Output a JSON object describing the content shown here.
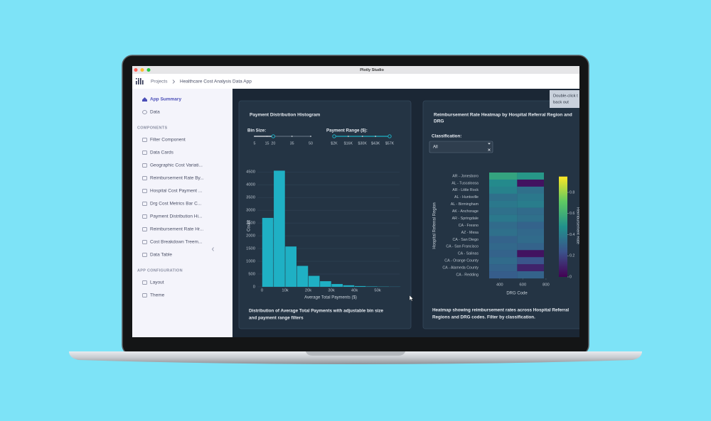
{
  "window_title": "Plotly Studio",
  "breadcrumb": {
    "root": "Projects",
    "current": "Healthcare Cost Analysis Data App"
  },
  "sidebar": {
    "top": [
      "App Summary",
      "Data"
    ],
    "components_heading": "COMPONENTS",
    "components": [
      "Filter Component",
      "Data Cards",
      "Geographic Cost Variati...",
      "Reimbursement Rate By...",
      "Hospital Cost Payment ...",
      "Drg Cost Metrics Bar C...",
      "Payment Distribution Hi...",
      "Reimbursement Rate Hr...",
      "Cost Breakdown Treem...",
      "Data Table"
    ],
    "config_heading": "APP CONFIGURATION",
    "config": [
      "Layout",
      "Theme"
    ]
  },
  "tooltip": [
    "Double-click t",
    "back out"
  ],
  "histogram_card": {
    "title": "Payment Distribution Histogram",
    "bin_size": {
      "label": "Bin Size:",
      "marks": [
        5,
        15,
        20,
        35,
        50
      ],
      "value": 20
    },
    "payment_range": {
      "label": "Payment Range ($):",
      "marks": [
        {
          "value": 2000,
          "label": "$2K"
        },
        {
          "value": 16000,
          "label": "$16K"
        },
        {
          "value": 30000,
          "label": "$30K"
        },
        {
          "value": 43000,
          "label": "$43K"
        },
        {
          "value": 57000,
          "label": "$57K"
        }
      ],
      "value": [
        2000,
        57000
      ]
    },
    "chart_data": {
      "type": "histogram",
      "bins": [
        0,
        5000,
        10000,
        15000,
        20000,
        25000,
        30000,
        35000,
        40000,
        45000,
        50000,
        55000,
        60000
      ],
      "counts": [
        2700,
        4550,
        1580,
        820,
        430,
        220,
        110,
        60,
        30,
        15,
        8,
        4
      ],
      "color": "#1fb0c4",
      "xlabel": "Average Total Payments ($)",
      "ylabel": "Count",
      "xlim": [
        -2000,
        59500
      ],
      "ylim": [
        0,
        4700
      ],
      "xticks": [
        0,
        {
          "value": 10000,
          "label": "10k"
        },
        {
          "value": 20000,
          "label": "20k"
        },
        {
          "value": 30000,
          "label": "30k"
        },
        {
          "value": 40000,
          "label": "40k"
        },
        {
          "value": 50000,
          "label": "50k"
        }
      ],
      "yticks": [
        0,
        500,
        1000,
        1500,
        2000,
        2500,
        3000,
        3500,
        4000,
        4500
      ],
      "grid": true
    },
    "description": [
      "Distribution of Average Total Payments with adjustable bin size",
      "and payment range filters"
    ]
  },
  "heatmap_card": {
    "title": [
      "Reimbursement Rate Heatmap by Hospital Referral Region and",
      "DRG"
    ],
    "classification_label": "Classification:",
    "classification_value": "All",
    "chart_data": {
      "type": "heatmap",
      "y": [
        "AR - Jonesboro",
        "AL - Tuscaloosa",
        "AR - Little Rock",
        "AL - Huntsville",
        "AL - Birmingham",
        "AK - Anchorage",
        "AR - Springdale",
        "CA - Fresno",
        "AZ - Mesa",
        "CA - San Diego",
        "CA - San Francisco",
        "CA - Salinas",
        "CA - Orange County",
        "CA - Alameda County",
        "CA - Redding"
      ],
      "x_edges": [
        309,
        551,
        782
      ],
      "z": [
        [
          0.55,
          0.5
        ],
        [
          0.45,
          0.05
        ],
        [
          0.42,
          0.35
        ],
        [
          0.35,
          0.38
        ],
        [
          0.38,
          0.4
        ],
        [
          0.35,
          0.33
        ],
        [
          0.38,
          0.35
        ],
        [
          0.33,
          0.3
        ],
        [
          0.35,
          0.32
        ],
        [
          0.3,
          0.33
        ],
        [
          0.32,
          0.3
        ],
        [
          0.3,
          0.05
        ],
        [
          0.33,
          0.25
        ],
        [
          0.3,
          0.1
        ],
        [
          0.28,
          0.3
        ]
      ],
      "xlim": [
        309,
        782
      ],
      "xticks": [
        400,
        600,
        800
      ],
      "xlabel": "DRG Code",
      "ylabel": "Hospital Referral Region",
      "zlim": [
        0,
        0.95
      ],
      "zticks": [
        0,
        0.2,
        0.4,
        0.6,
        0.8
      ],
      "colorbar_title": "Reimbursement Rate",
      "colorscale": [
        "#440154",
        "#3b528b",
        "#21918c",
        "#5ec962",
        "#fde725"
      ]
    },
    "description": [
      "Heatmap showing reimbursement rates across Hospital Referral",
      "Regions and DRG codes. Filter by classification."
    ]
  }
}
